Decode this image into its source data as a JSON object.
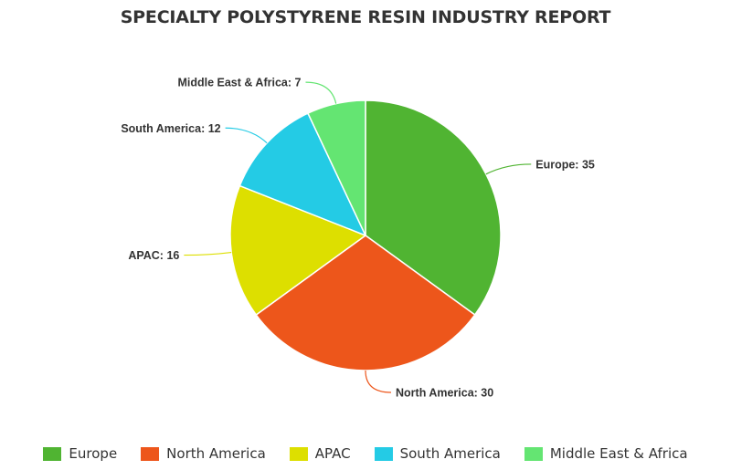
{
  "chart_data": {
    "type": "pie",
    "title": "SPECIALTY POLYSTYRENE RESIN INDUSTRY REPORT",
    "categories": [
      "Europe",
      "North America",
      "APAC",
      "South America",
      "Middle East & Africa"
    ],
    "values": [
      35,
      30,
      16,
      12,
      7
    ],
    "data_labels": [
      "Europe: 35",
      "North America: 30",
      "APAC: 16",
      "South America: 12",
      "Middle East & Africa: 7"
    ],
    "colors": [
      "#50b432",
      "#ed561b",
      "#dddf00",
      "#24cbe5",
      "#64e572"
    ],
    "start_angle_deg": 0,
    "direction": "clockwise",
    "legend": "bottom"
  }
}
